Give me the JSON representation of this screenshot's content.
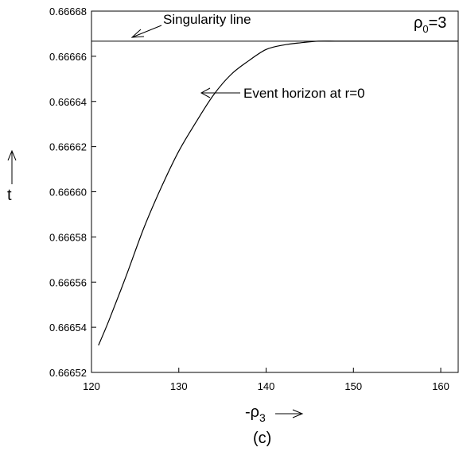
{
  "chart_data": {
    "type": "line",
    "x": [
      120.8,
      122,
      124,
      126,
      128,
      130,
      132,
      134,
      136,
      138,
      140,
      142,
      144,
      146,
      148,
      150,
      155,
      160,
      162
    ],
    "series": [
      {
        "values": [
          0.666532,
          0.666543,
          0.666563,
          0.666584,
          0.666602,
          0.666618,
          0.666631,
          0.666643,
          0.666652,
          0.666658,
          0.666663,
          0.666665,
          0.666666,
          0.6666667,
          0.6666667,
          0.6666667,
          0.6666667,
          0.6666667,
          0.6666667
        ]
      }
    ],
    "singularity_line": 0.6666667,
    "xlim": [
      120,
      162
    ],
    "ylim": [
      0.66652,
      0.66668
    ],
    "xticks": [
      120,
      130,
      140,
      150,
      160
    ],
    "yticks": [
      0.66652,
      0.66654,
      0.66656,
      0.66658,
      0.6666,
      0.66662,
      0.66664,
      0.66666,
      0.66668
    ],
    "xtick_labels": [
      "120",
      "130",
      "140",
      "150",
      "160"
    ],
    "ytick_labels": [
      "0.66652",
      "0.66654",
      "0.66656",
      "0.66658",
      "0.66660",
      "0.66662",
      "0.66664",
      "0.66666",
      "0.66668"
    ],
    "xlabel": "-ρ",
    "xlabel_sub": "3",
    "ylabel": "t",
    "grid": false
  },
  "annotations": {
    "singularity": "Singularity line",
    "event_horizon": "Event horizon at r=0",
    "rho_label": "ρ",
    "rho_sub": "0",
    "rho_value": "=3"
  },
  "caption": "(c)"
}
